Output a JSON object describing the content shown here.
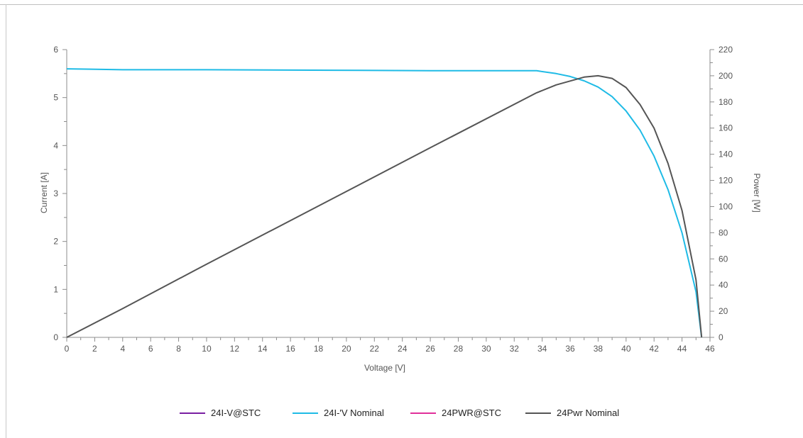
{
  "chart_data": {
    "type": "line",
    "xlabel": "Voltage [V]",
    "ylabel": "Current [A]",
    "y2label": "Power [W]",
    "xlim": [
      0,
      46
    ],
    "ylim": [
      0,
      6
    ],
    "y2lim": [
      0,
      220
    ],
    "xticks": [
      0,
      2,
      4,
      6,
      8,
      10,
      12,
      14,
      16,
      18,
      20,
      22,
      24,
      26,
      28,
      30,
      32,
      34,
      36,
      38,
      40,
      42,
      44,
      46
    ],
    "yticks": [
      0,
      1,
      2,
      3,
      4,
      5,
      6
    ],
    "y2ticks": [
      0,
      20,
      40,
      60,
      80,
      100,
      120,
      140,
      160,
      180,
      200,
      220
    ],
    "grid": false,
    "legend_position": "bottom",
    "series": [
      {
        "name": "24I-V@STC",
        "axis": "left",
        "color": "#7a1fa2",
        "x": [],
        "y": []
      },
      {
        "name": "24I-'V Nominal",
        "axis": "left",
        "color": "#1fbbe6",
        "x": [
          0,
          4,
          10,
          19,
          26,
          33.6,
          35,
          36,
          37,
          38,
          39,
          40,
          41,
          42,
          43,
          44,
          45,
          45.4
        ],
        "y": [
          5.6,
          5.58,
          5.58,
          5.57,
          5.56,
          5.56,
          5.5,
          5.44,
          5.35,
          5.22,
          5.02,
          4.72,
          4.32,
          3.78,
          3.08,
          2.18,
          0.95,
          0
        ]
      },
      {
        "name": "24PWR@STC",
        "axis": "right",
        "color": "#e0309a",
        "x": [],
        "y": []
      },
      {
        "name": "24Pwr Nominal",
        "axis": "right",
        "color": "#555555",
        "x": [
          0,
          4,
          10,
          19,
          26,
          33.6,
          35,
          36,
          37,
          38,
          39,
          40,
          41,
          42,
          43,
          44,
          45,
          45.4
        ],
        "y": [
          0,
          22,
          56,
          106,
          145,
          187,
          193,
          196,
          199,
          200,
          198,
          191,
          178,
          160,
          133,
          97,
          44,
          0
        ]
      }
    ]
  }
}
